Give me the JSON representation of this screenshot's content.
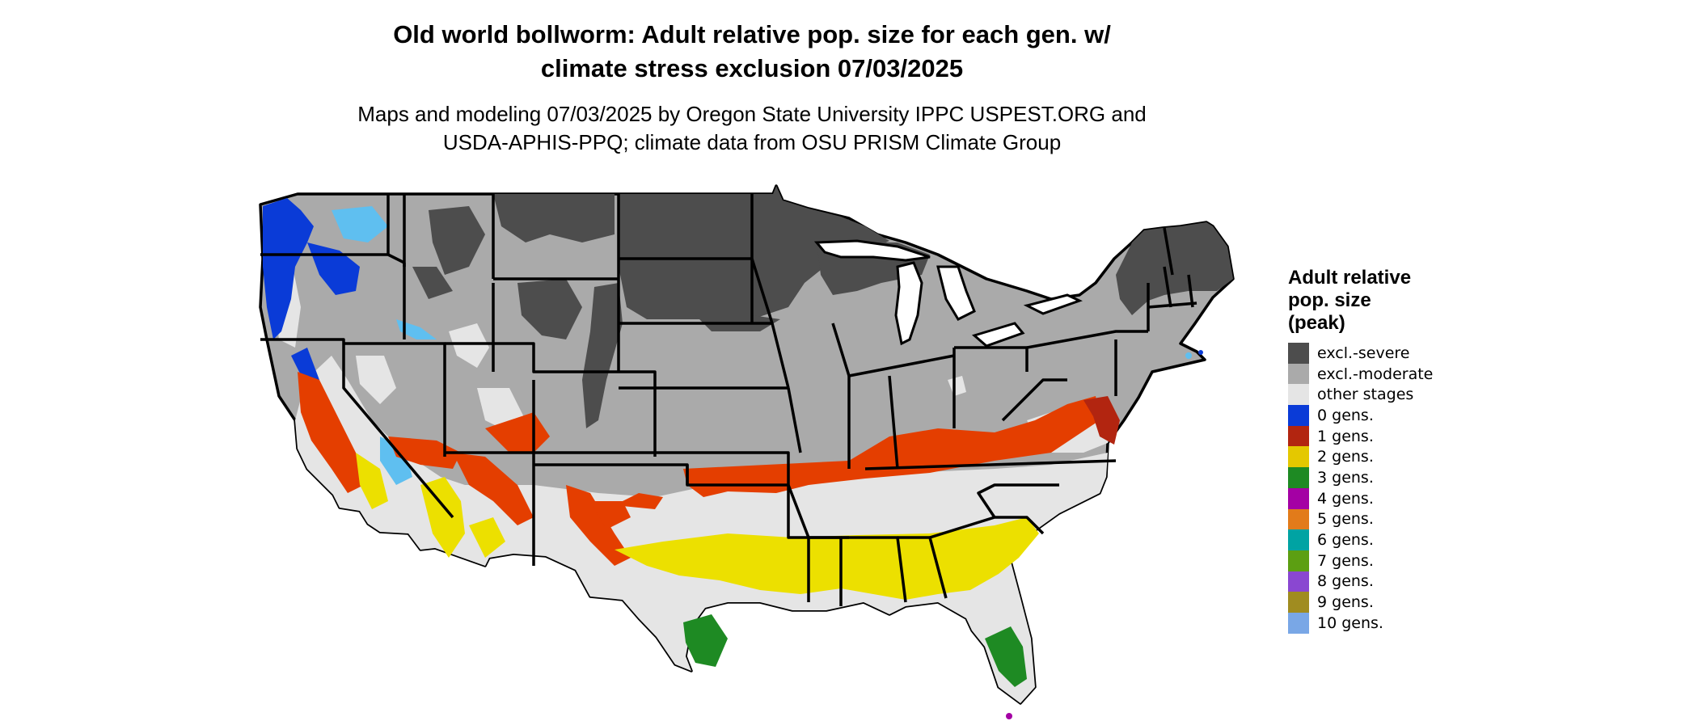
{
  "title": {
    "line1": "Old world bollworm: Adult relative pop. size for each gen. w/",
    "line2": "climate stress exclusion 07/03/2025"
  },
  "subtitle": {
    "line1": "Maps and modeling 07/03/2025 by Oregon State University IPPC USPEST.ORG and",
    "line2": "USDA-APHIS-PPQ; climate data from OSU PRISM Climate Group"
  },
  "legend": {
    "title_lines": [
      "Adult relative",
      "pop. size",
      "(peak)"
    ],
    "items": [
      {
        "label": "excl.-severe",
        "color": "#4d4d4d"
      },
      {
        "label": "excl.-moderate",
        "color": "#aaaaaa"
      },
      {
        "label": "other stages",
        "color": "#e5e5e5"
      },
      {
        "label": "0 gens.",
        "color": "#0a3bd7"
      },
      {
        "label": "1 gens.",
        "color": "#b22510"
      },
      {
        "label": "2 gens.",
        "color": "#e4c800"
      },
      {
        "label": "3 gens.",
        "color": "#1e8a23"
      },
      {
        "label": "4 gens.",
        "color": "#a400a4"
      },
      {
        "label": "5 gens.",
        "color": "#e27b1a"
      },
      {
        "label": "6 gens.",
        "color": "#00a3a3"
      },
      {
        "label": "7 gens.",
        "color": "#5c9f12"
      },
      {
        "label": "8 gens.",
        "color": "#8a47d1"
      },
      {
        "label": "9 gens.",
        "color": "#a08c20"
      },
      {
        "label": "10 gens.",
        "color": "#79a7e6"
      }
    ]
  },
  "map": {
    "colors": {
      "severe": "#4d4d4d",
      "moderate": "#aaaaaa",
      "other": "#e5e5e5",
      "gen0": "#0a3bd7",
      "gen0_light": "#5fbff0",
      "gen1": "#e43e00",
      "gen1_dark": "#b22510",
      "gen2": "#ece000",
      "gen3": "#1e8a23",
      "border": "#000000"
    }
  }
}
